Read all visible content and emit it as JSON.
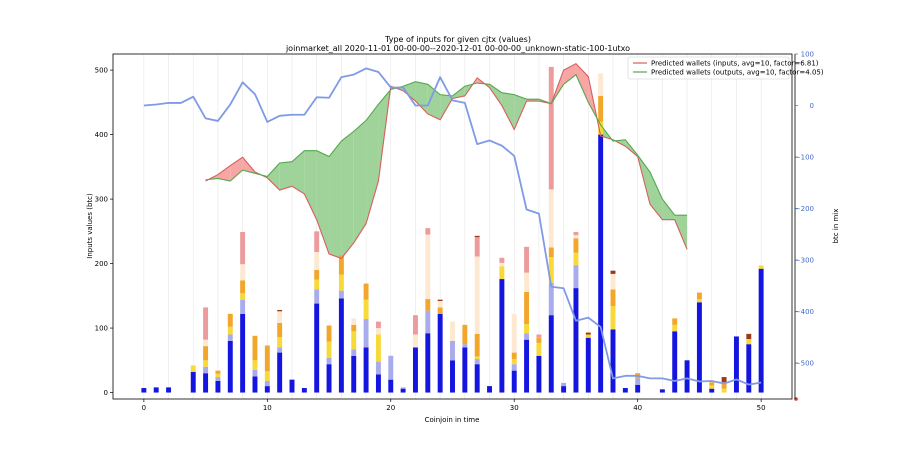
{
  "chart_data": {
    "type": "bar",
    "title": "Type of inputs for given cjtx (values)",
    "subtitle": "joinmarket_all 2020-11-01 00-00-00--2020-12-01 00-00-00_unknown-static-100-1utxo",
    "xlabel": "Coinjoin in time",
    "ylabel": "Inputs values (btc)",
    "ylabel_right": "btc in mix",
    "xlim": [
      -2.5,
      52.5
    ],
    "ylim": [
      -10,
      525
    ],
    "ylim_right": [
      -570,
      100
    ],
    "x_ticks": [
      0,
      10,
      20,
      30,
      40,
      50
    ],
    "y_ticks": [
      0,
      100,
      200,
      300,
      400,
      500
    ],
    "y_ticks_right": [
      100,
      0,
      -100,
      -200,
      -300,
      -400,
      -500
    ],
    "y_ticks_right_labels": [
      "100",
      "0",
      "−100",
      "−200",
      "−300",
      "−400",
      "−500"
    ],
    "grid": "vertical",
    "legend_position": "top-right",
    "colors": {
      "fresh": "#1515e0",
      "light_blue": "#a9acec",
      "yellow": "#f7d93a",
      "orange": "#f2a72c",
      "peach": "#fde9d2",
      "pink": "#ec9c9c",
      "brown": "#9a3a1a",
      "inputs_line": "#d65f5f",
      "outputs_line": "#55a84f",
      "fill_red": "#f8a5a5",
      "fill_green": "#9fd39a",
      "mix_line": "#7f9ae6",
      "right_axis": "#4169c8"
    },
    "x": [
      0,
      1,
      2,
      3,
      4,
      5,
      6,
      7,
      8,
      9,
      10,
      11,
      12,
      13,
      14,
      15,
      16,
      17,
      18,
      19,
      20,
      21,
      22,
      23,
      24,
      25,
      26,
      27,
      28,
      29,
      30,
      31,
      32,
      33,
      34,
      35,
      36,
      37,
      38,
      39,
      40,
      41,
      42,
      43,
      44,
      45,
      46,
      47,
      48,
      49,
      50
    ],
    "series": [
      {
        "key": "fresh",
        "values": [
          7,
          8,
          8,
          0,
          32,
          30,
          18,
          80,
          122,
          25,
          10,
          62,
          20,
          7,
          138,
          44,
          146,
          57,
          70,
          28,
          20,
          6,
          70,
          92,
          122,
          50,
          70,
          44,
          10,
          176,
          34,
          82,
          57,
          120,
          10,
          162,
          85,
          400,
          98,
          7,
          12,
          0,
          5,
          95,
          50,
          140,
          6,
          0,
          87,
          75,
          192
        ]
      },
      {
        "key": "light_blue",
        "values": [
          0,
          0,
          0,
          0,
          0,
          10,
          6,
          10,
          22,
          10,
          8,
          8,
          0,
          0,
          22,
          10,
          12,
          10,
          44,
          20,
          37,
          2,
          0,
          35,
          0,
          30,
          5,
          8,
          0,
          0,
          10,
          10,
          0,
          50,
          5,
          35,
          0,
          0,
          0,
          0,
          10,
          0,
          0,
          0,
          0,
          0,
          0,
          0,
          0,
          0,
          0
        ]
      },
      {
        "key": "yellow",
        "values": [
          0,
          0,
          0,
          0,
          10,
          10,
          5,
          12,
          10,
          15,
          15,
          16,
          0,
          0,
          15,
          25,
          25,
          28,
          30,
          42,
          0,
          0,
          0,
          0,
          0,
          0,
          0,
          4,
          0,
          20,
          8,
          14,
          20,
          40,
          0,
          20,
          5,
          20,
          36,
          0,
          0,
          0,
          0,
          10,
          0,
          5,
          5,
          6,
          0,
          8,
          5
        ]
      },
      {
        "key": "orange",
        "values": [
          0,
          0,
          0,
          0,
          0,
          22,
          5,
          20,
          20,
          38,
          40,
          22,
          0,
          0,
          15,
          25,
          30,
          10,
          25,
          0,
          0,
          0,
          0,
          18,
          10,
          0,
          30,
          35,
          0,
          0,
          10,
          50,
          8,
          15,
          0,
          22,
          0,
          40,
          26,
          0,
          8,
          0,
          0,
          10,
          0,
          10,
          5,
          10,
          0,
          0,
          0
        ]
      },
      {
        "key": "peach",
        "values": [
          0,
          0,
          0,
          0,
          0,
          10,
          0,
          0,
          25,
          0,
          0,
          18,
          0,
          0,
          28,
          0,
          0,
          10,
          0,
          10,
          0,
          0,
          20,
          100,
          10,
          30,
          0,
          120,
          0,
          5,
          60,
          30,
          0,
          90,
          0,
          5,
          0,
          35,
          24,
          0,
          0,
          0,
          0,
          0,
          0,
          0,
          0,
          0,
          0,
          0,
          0
        ]
      },
      {
        "key": "pink",
        "values": [
          0,
          0,
          0,
          0,
          0,
          50,
          0,
          0,
          50,
          0,
          0,
          0,
          0,
          0,
          32,
          0,
          0,
          0,
          0,
          10,
          0,
          0,
          30,
          10,
          0,
          0,
          0,
          30,
          0,
          8,
          0,
          40,
          5,
          190,
          0,
          5,
          0,
          0,
          0,
          0,
          0,
          0,
          0,
          0,
          0,
          0,
          0,
          0,
          0,
          0,
          0
        ]
      },
      {
        "key": "brown",
        "values": [
          0,
          0,
          0,
          0,
          0,
          0,
          0,
          0,
          0,
          0,
          0,
          2,
          0,
          0,
          0,
          0,
          0,
          0,
          0,
          0,
          0,
          0,
          0,
          0,
          2,
          0,
          0,
          2,
          0,
          0,
          0,
          0,
          0,
          0,
          0,
          0,
          3,
          0,
          5,
          0,
          0,
          0,
          0,
          0,
          0,
          0,
          0,
          8,
          0,
          8,
          0
        ]
      }
    ],
    "legend": [
      {
        "label": "Predicted wallets (inputs, avg=10, factor=6.81)",
        "color": "#d65f5f"
      },
      {
        "label": "Predicted wallets (outputs, avg=10, factor=4.05)",
        "color": "#55a84f"
      }
    ],
    "predicted_inputs": {
      "x": [
        5,
        6,
        7,
        8,
        9,
        10,
        11,
        12,
        13,
        14,
        15,
        16,
        17,
        18,
        19,
        20,
        21,
        22,
        23,
        24,
        25,
        26,
        27,
        28,
        29,
        30,
        31,
        32,
        33,
        34,
        35,
        36,
        37,
        38,
        39,
        40,
        41,
        42,
        43,
        44
      ],
      "values": [
        328,
        338,
        352,
        365,
        342,
        333,
        314,
        320,
        308,
        268,
        215,
        208,
        232,
        262,
        328,
        475,
        468,
        452,
        432,
        423,
        456,
        460,
        488,
        473,
        445,
        408,
        452,
        452,
        448,
        500,
        510,
        490,
        398,
        392,
        382,
        366,
        292,
        268,
        268,
        222
      ]
    },
    "predicted_outputs": {
      "x": [
        5,
        6,
        7,
        8,
        9,
        10,
        11,
        12,
        13,
        14,
        15,
        16,
        17,
        18,
        19,
        20,
        21,
        22,
        23,
        24,
        25,
        26,
        27,
        28,
        29,
        30,
        31,
        32,
        33,
        34,
        35,
        36,
        37,
        38,
        39,
        40,
        41,
        42,
        43,
        44
      ],
      "values": [
        330,
        332,
        328,
        345,
        340,
        335,
        356,
        358,
        375,
        375,
        366,
        390,
        405,
        422,
        447,
        470,
        475,
        482,
        478,
        462,
        460,
        475,
        480,
        478,
        465,
        462,
        455,
        455,
        448,
        478,
        493,
        450,
        415,
        390,
        392,
        368,
        342,
        300,
        275,
        275
      ]
    },
    "btc_in_mix": {
      "x": [
        0,
        1,
        2,
        3,
        4,
        5,
        6,
        7,
        8,
        9,
        10,
        11,
        12,
        13,
        14,
        15,
        16,
        17,
        18,
        19,
        20,
        21,
        22,
        23,
        24,
        25,
        26,
        27,
        28,
        29,
        30,
        31,
        32,
        33,
        34,
        35,
        36,
        37,
        38,
        39,
        40,
        41,
        42,
        43,
        44,
        45,
        46,
        47,
        48,
        49,
        50
      ],
      "values": [
        0,
        2,
        5,
        5,
        17,
        -25,
        -30,
        2,
        45,
        22,
        -32,
        -20,
        -18,
        -18,
        16,
        15,
        55,
        60,
        72,
        65,
        35,
        35,
        0,
        0,
        55,
        10,
        5,
        -75,
        -68,
        -78,
        -98,
        -202,
        -210,
        -352,
        -355,
        -418,
        -412,
        -430,
        -530,
        -525,
        -525,
        -530,
        -530,
        -535,
        -530,
        -536,
        -535,
        -540,
        -532,
        -542,
        -538
      ]
    }
  }
}
